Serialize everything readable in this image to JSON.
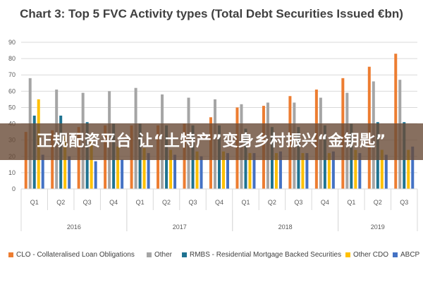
{
  "chart_data": {
    "type": "bar",
    "title": "Chart 3: Top 5 FVC Activity types (Total Debt Securities Issued €bn)",
    "ylim": [
      0,
      90
    ],
    "yticks": [
      0,
      10,
      20,
      30,
      40,
      50,
      60,
      70,
      80,
      90
    ],
    "grid": true,
    "legend_position": "bottom",
    "categories": [
      "Q1",
      "Q2",
      "Q3",
      "Q4",
      "Q1",
      "Q2",
      "Q3",
      "Q4",
      "Q1",
      "Q2",
      "Q3",
      "Q4",
      "Q1",
      "Q2",
      "Q3"
    ],
    "years": [
      {
        "label": "2016",
        "start": 0,
        "end": 3
      },
      {
        "label": "2017",
        "start": 4,
        "end": 7
      },
      {
        "label": "2018",
        "start": 8,
        "end": 11
      },
      {
        "label": "2019",
        "start": 12,
        "end": 14
      }
    ],
    "series": [
      {
        "name": "CLO - Collateralised Loan Obligations",
        "color": "#ED7D31",
        "values": [
          35,
          36,
          38,
          39,
          39,
          39,
          40,
          44,
          50,
          51,
          57,
          61,
          68,
          75,
          83
        ]
      },
      {
        "name": "Other",
        "color": "#A5A5A5",
        "values": [
          68,
          61,
          59,
          60,
          62,
          58,
          56,
          55,
          52,
          53,
          53,
          56,
          59,
          66,
          67
        ]
      },
      {
        "name": "RMBS - Residential Mortgage Backed Securities",
        "color": "#1F7391",
        "values": [
          45,
          45,
          41,
          40,
          40,
          39,
          39,
          39,
          37,
          38,
          38,
          39,
          40,
          41,
          41
        ]
      },
      {
        "name": "Other CDO",
        "color": "#FFC000",
        "values": [
          55,
          32,
          29,
          26,
          25,
          24,
          23,
          23,
          22,
          22,
          22,
          22,
          24,
          24,
          24
        ]
      },
      {
        "name": "ABCP",
        "color": "#4472C4",
        "values": [
          21,
          20,
          17,
          18,
          22,
          21,
          20,
          22,
          22,
          23,
          22,
          23,
          22,
          21,
          26
        ]
      }
    ]
  },
  "overlay": {
    "caption": "正规配资平台 让“土特产”变身乡村振兴“金钥匙”"
  }
}
